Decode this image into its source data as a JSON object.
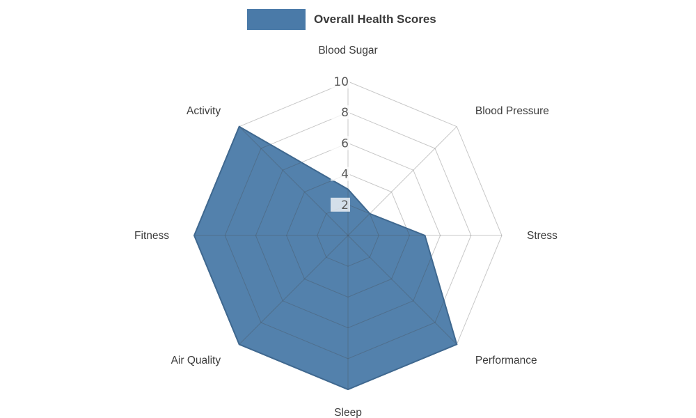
{
  "legend": {
    "position": "top-center"
  },
  "chart_data": {
    "type": "radar",
    "title": "",
    "categories": [
      "Blood Sugar",
      "Blood Pressure",
      "Stress",
      "Performance",
      "Sleep",
      "Air Quality",
      "Fitness",
      "Activity"
    ],
    "series": [
      {
        "name": "Overall Health Scores",
        "values": [
          3,
          2,
          5,
          10,
          10,
          10,
          10,
          10
        ]
      }
    ],
    "ticks": [
      2,
      4,
      6,
      8,
      10
    ],
    "rmax": 10,
    "grid": true,
    "legend_position": "top",
    "colors": {
      "fill": "#4a7aa8",
      "outline": "#3f688f",
      "grid": "#bdbdbd",
      "grid_over_fill": "rgba(70,70,70,0.30)",
      "axis_label": "#3c3c3c",
      "tick_label": "#595959"
    }
  }
}
